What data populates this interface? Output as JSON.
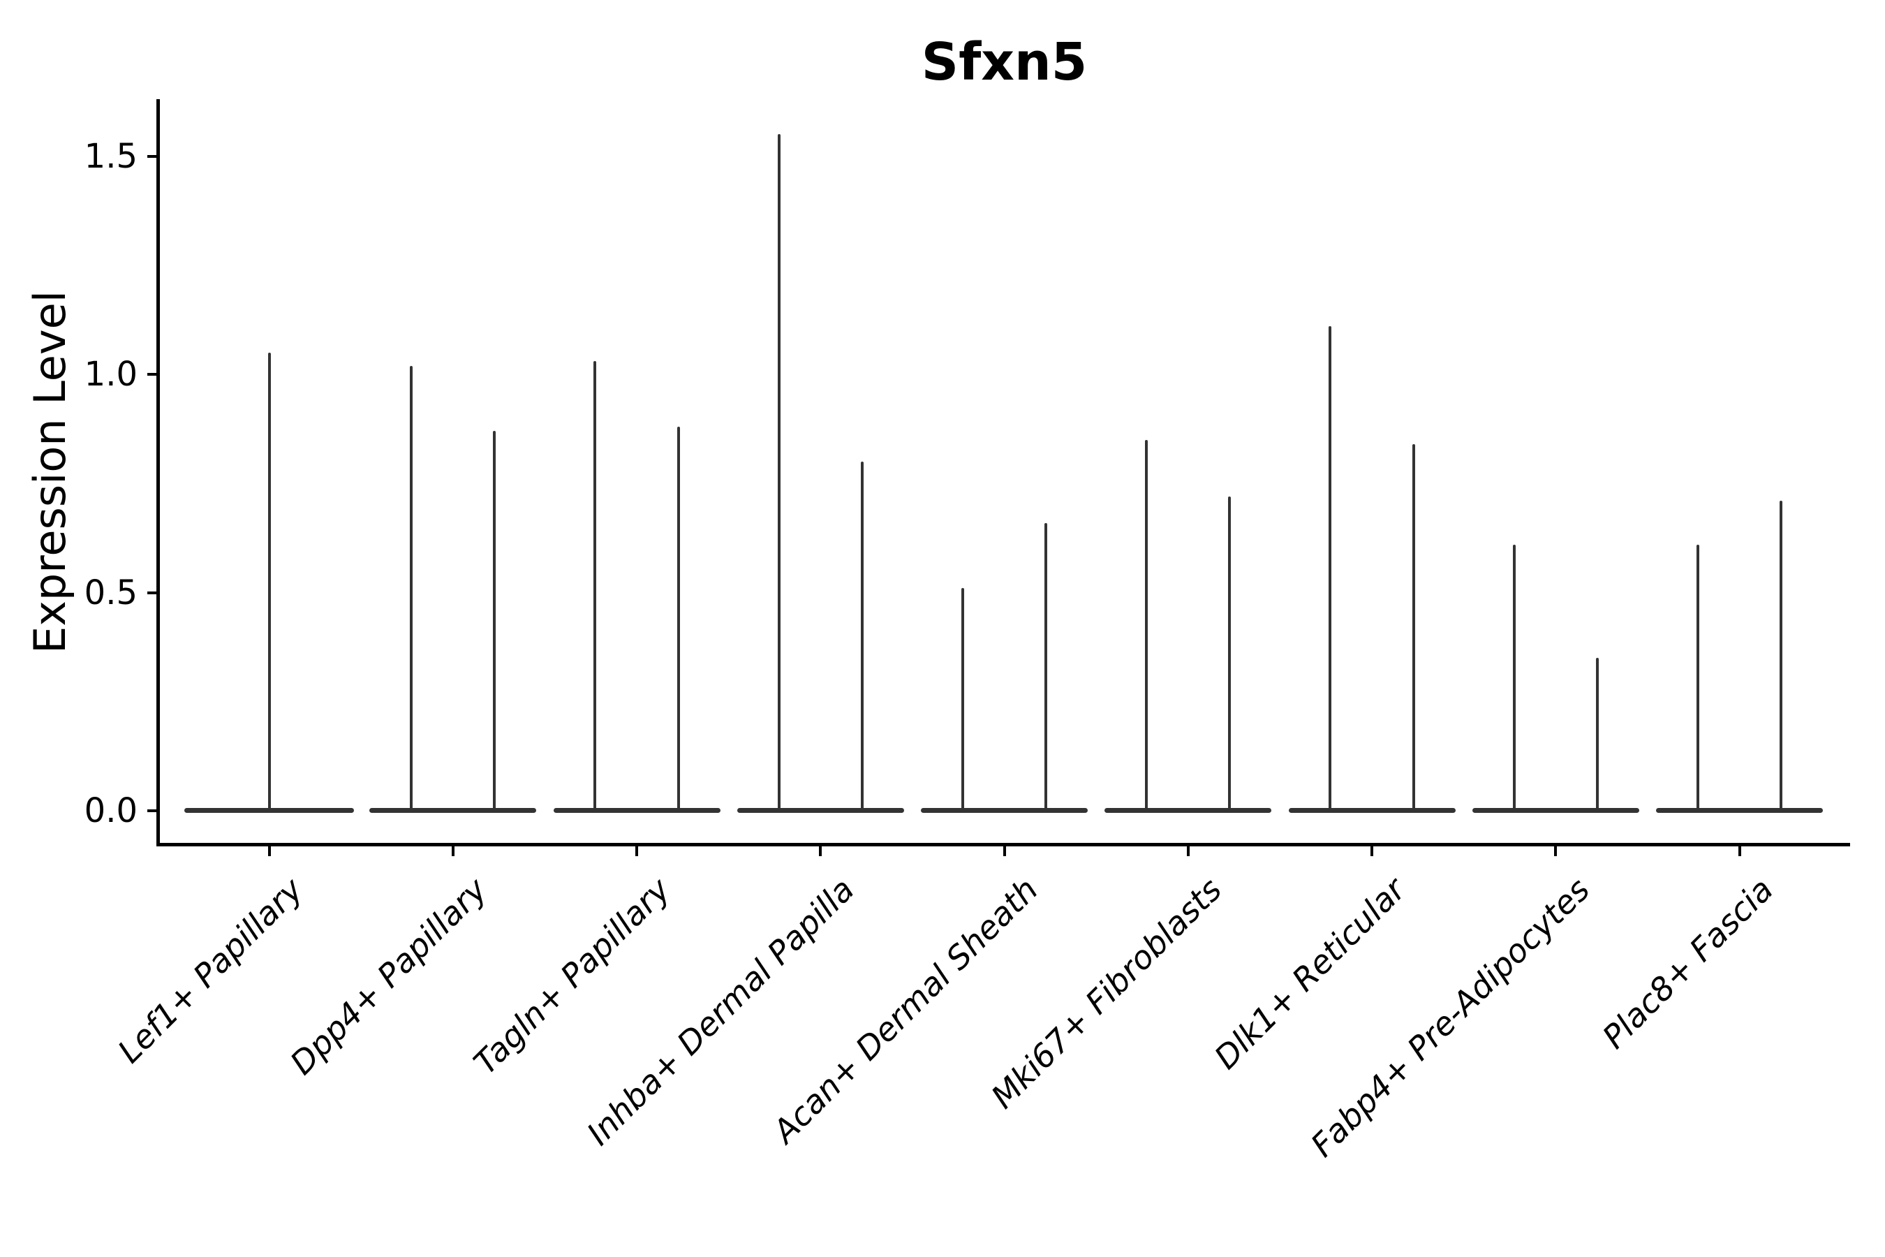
{
  "chart_data": {
    "type": "violin",
    "title": "Sfxn5",
    "ylabel": "Expression Level",
    "xlabel": "",
    "ylim": [
      0,
      1.63
    ],
    "grid": false,
    "legend": "none",
    "yticks": [
      {
        "value": 0.0,
        "label": "0.0"
      },
      {
        "value": 0.5,
        "label": "0.5"
      },
      {
        "value": 1.0,
        "label": "1.0"
      },
      {
        "value": 1.5,
        "label": "1.5"
      }
    ],
    "categories": [
      "Lef1+ Papillary",
      "Dpp4+ Papillary",
      "Tagln+ Papillary",
      "Inhba+ Dermal Papilla",
      "Acan+ Dermal Sheath",
      "Mki67+ Fibroblasts",
      "Dlk1+ Reticular",
      "Fabp4+ Pre-Adipocytes",
      "Plac8+ Fascia"
    ],
    "violins": [
      {
        "category": "Lef1+ Papillary",
        "layout": "single",
        "max_values": [
          1.05
        ]
      },
      {
        "category": "Dpp4+ Papillary",
        "layout": "pair",
        "max_values": [
          1.02,
          0.87
        ]
      },
      {
        "category": "Tagln+ Papillary",
        "layout": "pair",
        "max_values": [
          1.03,
          0.88
        ]
      },
      {
        "category": "Inhba+ Dermal Papilla",
        "layout": "pair",
        "max_values": [
          1.55,
          0.8
        ]
      },
      {
        "category": "Acan+ Dermal Sheath",
        "layout": "pair",
        "max_values": [
          0.51,
          0.66
        ]
      },
      {
        "category": "Mki67+ Fibroblasts",
        "layout": "pair",
        "max_values": [
          0.85,
          0.72
        ]
      },
      {
        "category": "Dlk1+ Reticular",
        "layout": "pair",
        "max_values": [
          1.11,
          0.84
        ]
      },
      {
        "category": "Fabp4+ Pre-Adipocytes",
        "layout": "pair",
        "max_values": [
          0.61,
          0.35
        ]
      },
      {
        "category": "Plac8+ Fascia",
        "layout": "pair",
        "max_values": [
          0.61,
          0.71
        ]
      }
    ],
    "colors": {
      "violin": "#333333",
      "axis": "#000000",
      "text": "#000000",
      "background": "#ffffff"
    }
  }
}
